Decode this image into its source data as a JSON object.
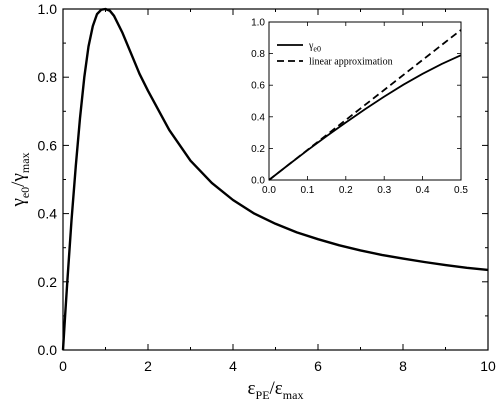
{
  "chart_data": [
    {
      "type": "line",
      "title": "",
      "xlabel": "ε_PE/ε_max",
      "ylabel": "γ_e0/γ_max",
      "xlabel_parts": {
        "base": "ε",
        "sub": "PE",
        "sep": "/ε",
        "sub2": "max"
      },
      "ylabel_parts": {
        "base": "γ",
        "sub": "e0",
        "sep": "/γ",
        "sub2": "max"
      },
      "xlim": [
        0,
        10
      ],
      "ylim": [
        0,
        1
      ],
      "xticks": [
        0,
        2,
        4,
        6,
        8,
        10
      ],
      "yticks": [
        0.0,
        0.2,
        0.4,
        0.6,
        0.8,
        1.0
      ],
      "xtick_labels": [
        "0",
        "2",
        "4",
        "6",
        "8",
        "10"
      ],
      "ytick_labels": [
        "0.0",
        "0.2",
        "0.4",
        "0.6",
        "0.8",
        "1.0"
      ],
      "grid": false,
      "series": [
        {
          "color": "#000000",
          "style": "solid",
          "x": [
            0,
            0.05,
            0.1,
            0.2,
            0.3,
            0.4,
            0.5,
            0.6,
            0.7,
            0.8,
            0.9,
            1.0,
            1.1,
            1.2,
            1.4,
            1.6,
            1.8,
            2.0,
            2.5,
            3.0,
            3.5,
            4.0,
            4.5,
            5.0,
            5.5,
            6.0,
            6.5,
            7.0,
            7.5,
            8.0,
            8.5,
            9.0,
            9.5,
            10.0
          ],
          "y": [
            0,
            0.1,
            0.2,
            0.38,
            0.54,
            0.68,
            0.8,
            0.89,
            0.95,
            0.985,
            0.998,
            1.0,
            0.995,
            0.98,
            0.93,
            0.87,
            0.81,
            0.76,
            0.645,
            0.555,
            0.49,
            0.44,
            0.4,
            0.37,
            0.345,
            0.325,
            0.307,
            0.292,
            0.279,
            0.268,
            0.258,
            0.249,
            0.241,
            0.235
          ]
        }
      ]
    },
    {
      "type": "line",
      "title": "",
      "xlabel": "",
      "ylabel": "",
      "xlim": [
        0,
        0.5
      ],
      "ylim": [
        0,
        1
      ],
      "xticks": [
        0,
        0.1,
        0.2,
        0.3,
        0.4,
        0.5
      ],
      "yticks": [
        0.0,
        0.2,
        0.4,
        0.6,
        0.8,
        1.0
      ],
      "xtick_labels": [
        "0.0",
        "0.1",
        "0.2",
        "0.3",
        "0.4",
        "0.5"
      ],
      "ytick_labels": [
        "0.0",
        "0.2",
        "0.4",
        "0.6",
        "0.8",
        "1.0"
      ],
      "grid": false,
      "legend_position": "top-left",
      "series": [
        {
          "name": "γ_e0",
          "name_parts": {
            "base": "γ",
            "sub": "e0"
          },
          "color": "#000000",
          "style": "solid",
          "x": [
            0,
            0.05,
            0.1,
            0.15,
            0.2,
            0.25,
            0.3,
            0.35,
            0.4,
            0.45,
            0.5
          ],
          "y": [
            0,
            0.095,
            0.188,
            0.278,
            0.364,
            0.448,
            0.528,
            0.603,
            0.672,
            0.735,
            0.79
          ]
        },
        {
          "name": "linear approximation",
          "color": "#000000",
          "style": "dashed",
          "x": [
            0,
            0.5
          ],
          "y": [
            0,
            0.95
          ]
        }
      ]
    }
  ]
}
